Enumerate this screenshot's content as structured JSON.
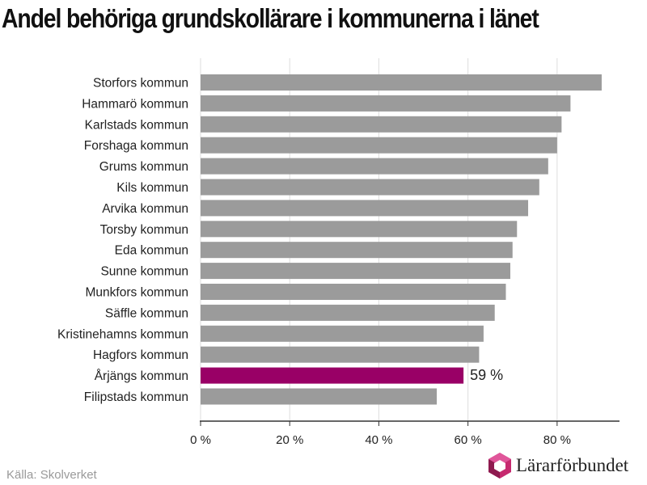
{
  "chart_data": {
    "type": "bar",
    "orientation": "horizontal",
    "title": "Andel behöriga grundskollärare i kommunerna i länet",
    "categories": [
      "Storfors kommun",
      "Hammarö kommun",
      "Karlstads kommun",
      "Forshaga kommun",
      "Grums kommun",
      "Kils kommun",
      "Arvika kommun",
      "Torsby kommun",
      "Eda kommun",
      "Sunne kommun",
      "Munkfors kommun",
      "Säffle kommun",
      "Kristinehamns kommun",
      "Hagfors kommun",
      "Årjängs kommun",
      "Filipstads kommun"
    ],
    "values": [
      90,
      83,
      81,
      80,
      78,
      76,
      73.5,
      71,
      70,
      69.5,
      68.5,
      66,
      63.5,
      62.5,
      59,
      53
    ],
    "highlight": {
      "category": "Årjängs kommun",
      "label": "59 %"
    },
    "xticks": [
      "0 %",
      "20 %",
      "40 %",
      "60 %",
      "80 %"
    ],
    "xtick_values": [
      0,
      20,
      40,
      60,
      80
    ],
    "xlim": [
      0,
      94
    ],
    "grid": true,
    "colors": {
      "bar": "#9b9b9b",
      "highlight": "#990066",
      "grid": "#dddddd",
      "axis": "#333333"
    }
  },
  "footer": {
    "source": "Källa: Skolverket",
    "brand": "Lärarförbundet"
  }
}
